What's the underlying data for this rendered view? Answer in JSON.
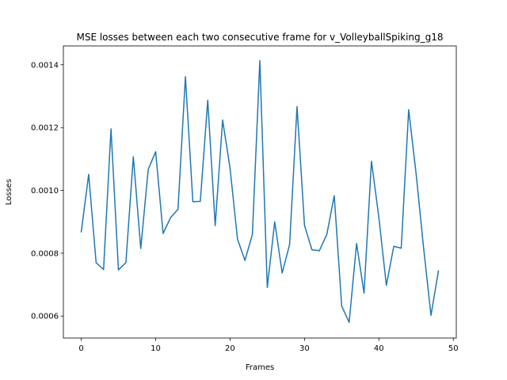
{
  "chart_data": {
    "type": "line",
    "title": "MSE losses between each two consecutive frame for v_VolleyballSpiking_g18",
    "xlabel": "Frames",
    "ylabel": "Losses",
    "xlim": [
      -2.4,
      50.4
    ],
    "ylim": [
      0.00053,
      0.00146
    ],
    "xticks": [
      0,
      10,
      20,
      30,
      40,
      50
    ],
    "xtick_labels": [
      "0",
      "10",
      "20",
      "30",
      "40",
      "50"
    ],
    "yticks": [
      0.0006,
      0.0008,
      0.001,
      0.0012,
      0.0014
    ],
    "ytick_labels": [
      "0.0006",
      "0.0008",
      "0.0010",
      "0.0012",
      "0.0014"
    ],
    "grid": false,
    "series": [
      {
        "color": "#1f77b4",
        "x": [
          0,
          1,
          2,
          3,
          4,
          5,
          6,
          7,
          8,
          9,
          10,
          11,
          12,
          13,
          14,
          15,
          16,
          17,
          18,
          19,
          20,
          21,
          22,
          23,
          24,
          25,
          26,
          27,
          28,
          29,
          30,
          31,
          32,
          33,
          34,
          35,
          36,
          37,
          38,
          39,
          40,
          41,
          42,
          43,
          44,
          45,
          46,
          47,
          48
        ],
        "values": [
          0.000868,
          0.001051,
          0.00077,
          0.000748,
          0.001196,
          0.000747,
          0.00077,
          0.001107,
          0.000815,
          0.001067,
          0.001123,
          0.000863,
          0.000913,
          0.00094,
          0.001362,
          0.000964,
          0.000965,
          0.001287,
          0.000888,
          0.001224,
          0.00107,
          0.000845,
          0.000777,
          0.00086,
          0.001413,
          0.000691,
          0.0009,
          0.000737,
          0.000828,
          0.001267,
          0.000889,
          0.000811,
          0.000808,
          0.00086,
          0.000983,
          0.000632,
          0.00058,
          0.000831,
          0.000673,
          0.001093,
          0.000913,
          0.000698,
          0.000822,
          0.000816,
          0.001257,
          0.001053,
          0.000818,
          0.000602,
          0.000744
        ]
      }
    ]
  }
}
